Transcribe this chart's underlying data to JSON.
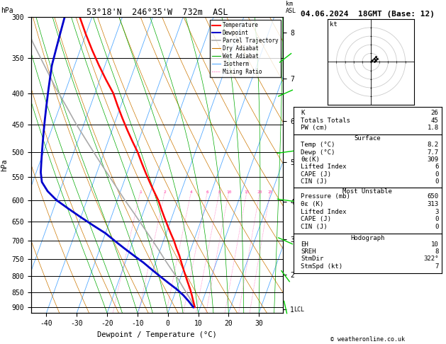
{
  "title_main": "53°18'N  246°35'W  732m  ASL",
  "date_title": "04.06.2024  18GMT (Base: 12)",
  "xlabel": "Dewpoint / Temperature (°C)",
  "ylabel_left": "hPa",
  "pressure_ticks": [
    300,
    350,
    400,
    450,
    500,
    550,
    600,
    650,
    700,
    750,
    800,
    850,
    900
  ],
  "pmin": 300,
  "pmax": 920,
  "tmin": -45,
  "tmax": 38,
  "skew_factor": 35.0,
  "isotherm_color": "#55aaff",
  "isotherm_values": [
    -50,
    -40,
    -30,
    -20,
    -10,
    0,
    10,
    20,
    30,
    40
  ],
  "dry_adiabat_color": "#cc7700",
  "wet_adiabat_color": "#00aa00",
  "mixing_ratio_color": "#ff44aa",
  "mixing_ratio_values": [
    1,
    2,
    4,
    6,
    8,
    10,
    15,
    20,
    25
  ],
  "km_ticks": [
    1,
    2,
    3,
    4,
    5,
    6,
    7,
    8
  ],
  "km_pressures": [
    908,
    795,
    695,
    603,
    520,
    445,
    378,
    318
  ],
  "lcl_pressure": 908,
  "background_color": "#ffffff",
  "temp_profile": {
    "pressure": [
      900,
      880,
      860,
      840,
      820,
      800,
      780,
      760,
      740,
      720,
      700,
      680,
      660,
      640,
      620,
      600,
      580,
      560,
      540,
      520,
      500,
      480,
      460,
      440,
      420,
      400,
      380,
      360,
      340,
      320,
      300
    ],
    "temp": [
      8.2,
      7.0,
      5.8,
      4.5,
      3.0,
      1.5,
      0.0,
      -1.5,
      -3.0,
      -4.8,
      -6.5,
      -8.5,
      -10.5,
      -12.5,
      -14.5,
      -16.5,
      -19.0,
      -21.5,
      -24.0,
      -26.5,
      -29.0,
      -32.0,
      -35.0,
      -38.0,
      -41.0,
      -44.0,
      -48.0,
      -52.0,
      -56.0,
      -60.0,
      -64.0
    ],
    "color": "#ff0000",
    "linewidth": 1.8
  },
  "dewp_profile": {
    "pressure": [
      900,
      880,
      860,
      840,
      820,
      800,
      780,
      760,
      740,
      720,
      700,
      680,
      660,
      640,
      620,
      600,
      580,
      560,
      540,
      520,
      500,
      480,
      460,
      440,
      420,
      400,
      380,
      360,
      340,
      320,
      300
    ],
    "temp": [
      7.7,
      5.5,
      3.0,
      0.0,
      -3.5,
      -7.0,
      -10.5,
      -14.0,
      -18.0,
      -22.0,
      -26.0,
      -30.0,
      -35.0,
      -40.0,
      -45.0,
      -50.0,
      -54.0,
      -57.0,
      -58.5,
      -59.5,
      -60.5,
      -61.5,
      -62.5,
      -63.5,
      -64.5,
      -65.5,
      -66.5,
      -67.5,
      -68.0,
      -68.5,
      -69.0
    ],
    "color": "#0000cc",
    "linewidth": 2.0
  },
  "parcel_profile": {
    "pressure": [
      900,
      870,
      840,
      810,
      780,
      750,
      720,
      690,
      660,
      630,
      600,
      570,
      540,
      510,
      480,
      450,
      420,
      390,
      360,
      330,
      300
    ],
    "temp": [
      8.2,
      5.5,
      2.5,
      -0.5,
      -4.0,
      -7.5,
      -11.0,
      -14.8,
      -18.8,
      -23.0,
      -27.5,
      -32.0,
      -36.8,
      -41.8,
      -47.0,
      -52.5,
      -58.0,
      -64.0,
      -70.0,
      -76.5,
      -83.0
    ],
    "color": "#aaaaaa",
    "linewidth": 1.2
  },
  "stats": {
    "K": "26",
    "Totals_Totals": "45",
    "PW_cm": "1.8",
    "Surface_Temp": "8.2",
    "Surface_Dewp": "7.7",
    "Surface_thetaE": "309",
    "Surface_LI": "6",
    "Surface_CAPE": "0",
    "Surface_CIN": "0",
    "MU_Pressure": "650",
    "MU_thetaE": "313",
    "MU_LI": "3",
    "MU_CAPE": "0",
    "MU_CIN": "0",
    "EH": "10",
    "SREH": "8",
    "StmDir": "322°",
    "StmSpd": "7"
  },
  "copyright": "© weatheronline.co.uk",
  "wind_barb_pressures": [
    350,
    400,
    500,
    600,
    700,
    800,
    900
  ],
  "wind_barb_colors": [
    "#00cc00",
    "#00cc00",
    "#00cc00",
    "#00cc00",
    "#00cc00",
    "#00cc00",
    "#00cc00"
  ],
  "wind_barb_angles": [
    45,
    60,
    80,
    100,
    120,
    150,
    170
  ],
  "wind_barb_speeds": [
    15,
    12,
    10,
    8,
    7,
    6,
    5
  ]
}
